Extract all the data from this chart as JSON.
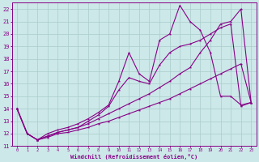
{
  "xlabel": "Windchill (Refroidissement éolien,°C)",
  "xlim": [
    -0.5,
    23.5
  ],
  "ylim": [
    11,
    22.5
  ],
  "xticks": [
    0,
    1,
    2,
    3,
    4,
    5,
    6,
    7,
    8,
    9,
    10,
    11,
    12,
    13,
    14,
    15,
    16,
    17,
    18,
    19,
    20,
    21,
    22,
    23
  ],
  "yticks": [
    11,
    12,
    13,
    14,
    15,
    16,
    17,
    18,
    19,
    20,
    21,
    22
  ],
  "bg_color": "#cce8e8",
  "grid_color": "#aacccc",
  "line_color": "#880088",
  "lines": [
    [
      14.0,
      12.0,
      11.5,
      11.7,
      12.0,
      12.1,
      12.3,
      12.5,
      12.8,
      13.0,
      13.3,
      13.6,
      13.9,
      14.2,
      14.5,
      14.8,
      15.2,
      15.6,
      16.0,
      16.4,
      16.8,
      17.2,
      17.6,
      14.5
    ],
    [
      14.0,
      12.0,
      11.5,
      11.8,
      12.1,
      12.3,
      12.5,
      13.0,
      13.5,
      14.2,
      15.5,
      16.5,
      16.2,
      16.0,
      17.5,
      18.5,
      19.0,
      19.2,
      19.5,
      20.0,
      20.5,
      20.8,
      14.2,
      14.5
    ],
    [
      14.0,
      12.0,
      11.5,
      12.0,
      12.3,
      12.5,
      12.8,
      13.2,
      13.7,
      14.3,
      16.2,
      18.5,
      16.8,
      16.2,
      19.5,
      20.0,
      22.3,
      21.0,
      20.3,
      18.5,
      15.0,
      15.0,
      14.3,
      14.5
    ],
    [
      14.0,
      12.0,
      11.5,
      11.8,
      12.1,
      12.3,
      12.5,
      12.8,
      13.2,
      13.6,
      14.0,
      14.4,
      14.8,
      15.2,
      15.7,
      16.2,
      16.8,
      17.3,
      18.5,
      19.5,
      20.8,
      21.0,
      22.0,
      14.5
    ]
  ]
}
